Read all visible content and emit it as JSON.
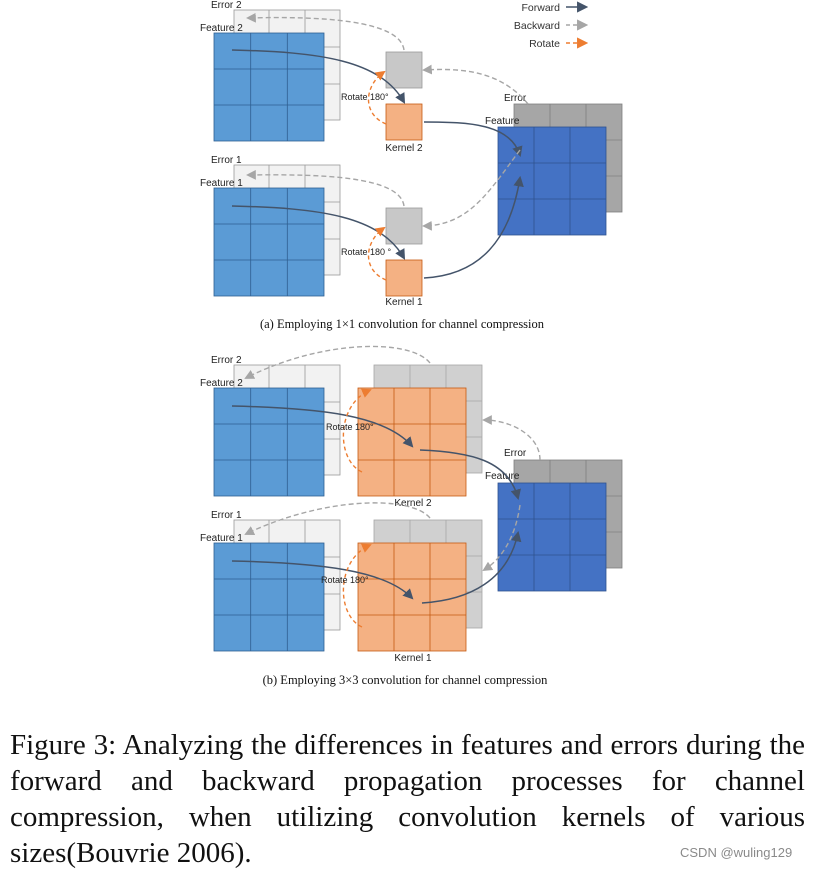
{
  "legend": {
    "forward": "Forward",
    "backward": "Backward",
    "rotate": "Rotate"
  },
  "panel_a": {
    "error2": "Error 2",
    "feature2": "Feature 2",
    "error1": "Error 1",
    "feature1": "Feature 1",
    "rotate_top": "Rotate 180°",
    "rotate_bottom": "Rotate 180 °",
    "kernel2": "Kernel 2",
    "kernel1": "Kernel 1",
    "out_error": "Error",
    "out_feature": "Feature",
    "caption": "(a) Employing 1×1 convolution for channel compression"
  },
  "panel_b": {
    "error2": "Error 2",
    "feature2": "Feature 2",
    "error1": "Error 1",
    "feature1": "Feature 1",
    "rotate_top": "Rotate 180°",
    "rotate_bottom": "Rotate 180°",
    "kernel2": "Kernel 2",
    "kernel1": "Kernel 1",
    "out_error": "Error",
    "out_feature": "Feature",
    "caption": "(b) Employing 3×3 convolution for channel compression"
  },
  "figure_caption": "Figure 3: Analyzing the differences in features and errors during the forward and backward propagation processes for channel compression, when utilizing convolution kernels of various sizes(Bouvrie 2006).",
  "watermark": "CSDN @wuling129",
  "colors": {
    "feature_blue": "#5b9bd5",
    "output_blue": "#4472c4",
    "error_gray": "#f2f2f2",
    "kernel_orange": "#f4b183",
    "kernel_gray": "#c8c8c8",
    "forward_line": "#44546a",
    "backward_line": "#a6a6a6",
    "rotate_line": "#ed7d31"
  }
}
